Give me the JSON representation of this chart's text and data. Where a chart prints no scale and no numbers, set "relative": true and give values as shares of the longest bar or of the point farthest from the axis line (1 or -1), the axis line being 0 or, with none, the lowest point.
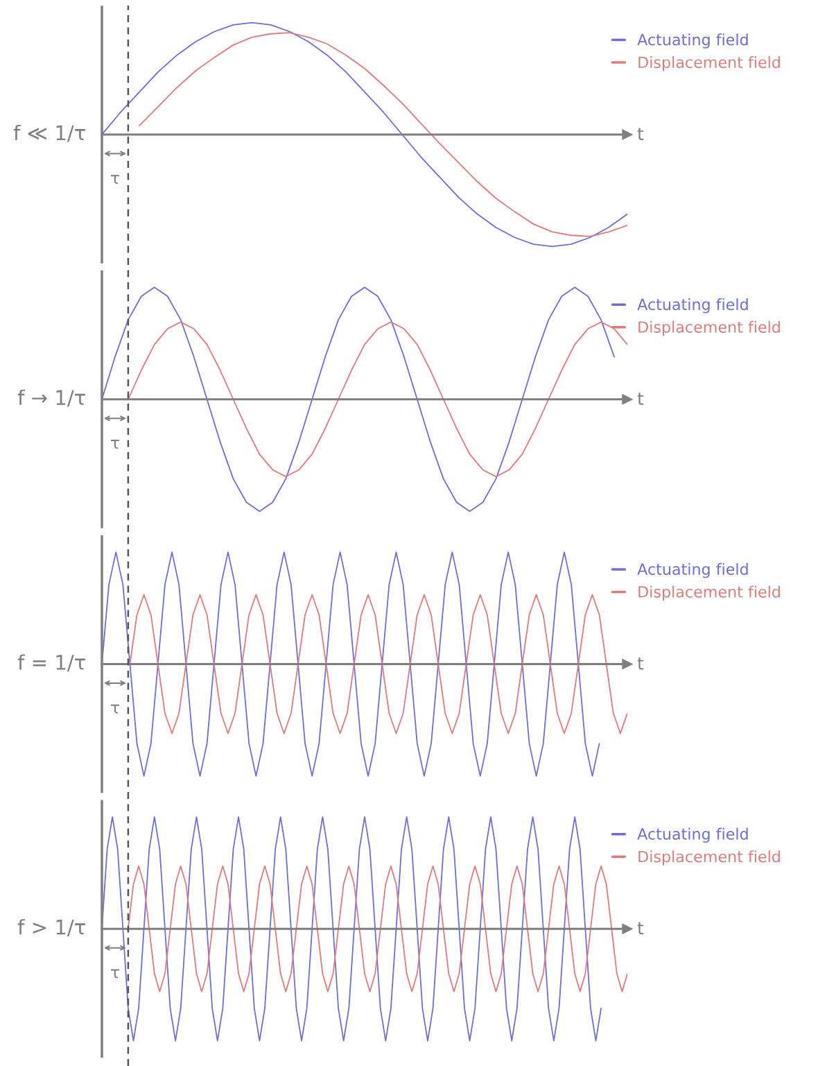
{
  "chart_data": [
    {
      "type": "line",
      "ylabel": "f ≪ 1/τ",
      "xlabel": "t",
      "relative": true,
      "legend": "top right",
      "annotations": [
        "τ"
      ],
      "categories": [
        null,
        null,
        null,
        null,
        null,
        null,
        null,
        null,
        null,
        null,
        null,
        null,
        null,
        null,
        null,
        null,
        null,
        null,
        null,
        null,
        null,
        null,
        null,
        null,
        null,
        null,
        null,
        null,
        null
      ],
      "series": [
        {
          "name": "Actuating field",
          "color": "#6d6ddc",
          "values": [
            0,
            0.2,
            0.38,
            0.56,
            0.71,
            0.83,
            0.92,
            0.98,
            1,
            0.98,
            0.92,
            0.83,
            0.71,
            0.56,
            0.38,
            0.2,
            0,
            -0.2,
            -0.38,
            -0.56,
            -0.71,
            -0.83,
            -0.92,
            -0.98,
            -1,
            -0.98,
            -0.92,
            -0.83,
            -0.71
          ]
        },
        {
          "name": "Displacement field",
          "color": "#e07b7b",
          "values": [
            null,
            null,
            0.08,
            0.25,
            0.42,
            0.57,
            0.69,
            0.8,
            0.87,
            0.9,
            0.91,
            0.87,
            0.81,
            0.71,
            0.59,
            0.44,
            0.28,
            0.1,
            -0.08,
            -0.25,
            -0.42,
            -0.57,
            -0.69,
            -0.8,
            -0.87,
            -0.9,
            -0.91,
            -0.87,
            -0.81
          ]
        }
      ]
    },
    {
      "type": "line",
      "ylabel": "f → 1/τ",
      "xlabel": "t",
      "relative": true,
      "legend": "top right",
      "annotations": [
        "τ"
      ],
      "categories": [
        null,
        null,
        null,
        null,
        null,
        null,
        null,
        null,
        null,
        null,
        null,
        null,
        null,
        null,
        null,
        null,
        null,
        null,
        null,
        null,
        null,
        null,
        null,
        null,
        null,
        null,
        null,
        null,
        null,
        null,
        null,
        null,
        null,
        null,
        null,
        null,
        null,
        null,
        null,
        null,
        null
      ],
      "series": [
        {
          "name": "Actuating field",
          "color": "#6d6ddc",
          "values": [
            0,
            0.38,
            0.71,
            0.92,
            1,
            0.92,
            0.71,
            0.38,
            0,
            -0.38,
            -0.71,
            -0.92,
            -1,
            -0.92,
            -0.71,
            -0.38,
            0,
            0.38,
            0.71,
            0.92,
            1,
            0.92,
            0.71,
            0.38,
            0,
            -0.38,
            -0.71,
            -0.92,
            -1,
            -0.92,
            -0.71,
            -0.38,
            0,
            0.38,
            0.71,
            0.92,
            1,
            0.92,
            0.71,
            0.38,
            null
          ]
        },
        {
          "name": "Displacement field",
          "color": "#e07b7b",
          "values": [
            null,
            null,
            0,
            0.26,
            0.49,
            0.63,
            0.69,
            0.63,
            0.49,
            0.26,
            0,
            -0.26,
            -0.49,
            -0.63,
            -0.69,
            -0.63,
            -0.49,
            -0.26,
            0,
            0.26,
            0.49,
            0.63,
            0.69,
            0.63,
            0.49,
            0.26,
            0,
            -0.26,
            -0.49,
            -0.63,
            -0.69,
            -0.63,
            -0.49,
            -0.26,
            0,
            0.26,
            0.49,
            0.63,
            0.69,
            0.63,
            0.49
          ]
        }
      ]
    },
    {
      "type": "line",
      "ylabel": "f = 1/τ",
      "xlabel": "t",
      "relative": true,
      "legend": "top right",
      "annotations": [
        "τ"
      ],
      "categories": [
        null,
        null,
        null,
        null,
        null,
        null,
        null,
        null,
        null,
        null,
        null,
        null,
        null,
        null,
        null,
        null,
        null,
        null,
        null,
        null,
        null,
        null,
        null,
        null,
        null,
        null,
        null,
        null,
        null,
        null,
        null,
        null,
        null,
        null,
        null,
        null,
        null,
        null,
        null,
        null,
        null,
        null,
        null,
        null,
        null,
        null,
        null,
        null,
        null,
        null,
        null,
        null,
        null,
        null,
        null,
        null,
        null,
        null,
        null,
        null,
        null,
        null,
        null,
        null,
        null,
        null,
        null,
        null,
        null,
        null,
        null,
        null,
        null,
        null,
        null,
        null
      ],
      "series": [
        {
          "name": "Actuating field",
          "color": "#6d6ddc",
          "values": [
            0,
            0.71,
            1,
            0.71,
            0,
            -0.71,
            -1,
            -0.71,
            0,
            0.71,
            1,
            0.71,
            0,
            -0.71,
            -1,
            -0.71,
            0,
            0.71,
            1,
            0.71,
            0,
            -0.71,
            -1,
            -0.71,
            0,
            0.71,
            1,
            0.71,
            0,
            -0.71,
            -1,
            -0.71,
            0,
            0.71,
            1,
            0.71,
            0,
            -0.71,
            -1,
            -0.71,
            0,
            0.71,
            1,
            0.71,
            0,
            -0.71,
            -1,
            -0.71,
            0,
            0.71,
            1,
            0.71,
            0,
            -0.71,
            -1,
            -0.71,
            0,
            0.71,
            1,
            0.71,
            0,
            -0.71,
            -1,
            -0.71,
            0,
            0.71,
            1,
            0.71,
            0,
            -0.71,
            -1,
            -0.71,
            null,
            null,
            null,
            null
          ]
        },
        {
          "name": "Displacement field",
          "color": "#e07b7b",
          "values": [
            null,
            null,
            null,
            null,
            0,
            0.44,
            0.62,
            0.44,
            0,
            -0.44,
            -0.62,
            -0.44,
            0,
            0.44,
            0.62,
            0.44,
            0,
            -0.44,
            -0.62,
            -0.44,
            0,
            0.44,
            0.62,
            0.44,
            0,
            -0.44,
            -0.62,
            -0.44,
            0,
            0.44,
            0.62,
            0.44,
            0,
            -0.44,
            -0.62,
            -0.44,
            0,
            0.44,
            0.62,
            0.44,
            0,
            -0.44,
            -0.62,
            -0.44,
            0,
            0.44,
            0.62,
            0.44,
            0,
            -0.44,
            -0.62,
            -0.44,
            0,
            0.44,
            0.62,
            0.44,
            0,
            -0.44,
            -0.62,
            -0.44,
            0,
            0.44,
            0.62,
            0.44,
            0,
            -0.44,
            -0.62,
            -0.44,
            0,
            0.44,
            0.62,
            0.44,
            0,
            -0.44,
            -0.62,
            -0.44
          ]
        }
      ]
    },
    {
      "type": "line",
      "ylabel": "f > 1/τ",
      "xlabel": "t",
      "relative": true,
      "legend": "top right",
      "annotations": [
        "τ"
      ],
      "categories": [
        null,
        null,
        null,
        null,
        null,
        null,
        null,
        null,
        null,
        null,
        null,
        null,
        null,
        null,
        null,
        null,
        null,
        null,
        null,
        null,
        null,
        null,
        null,
        null,
        null,
        null,
        null,
        null,
        null,
        null,
        null,
        null,
        null,
        null,
        null,
        null,
        null,
        null,
        null,
        null,
        null,
        null,
        null,
        null,
        null,
        null,
        null,
        null,
        null,
        null,
        null,
        null,
        null,
        null,
        null,
        null,
        null,
        null,
        null,
        null,
        null,
        null,
        null,
        null,
        null,
        null,
        null,
        null,
        null,
        null,
        null,
        null,
        null,
        null,
        null,
        null,
        null,
        null,
        null,
        null,
        null,
        null,
        null,
        null,
        null,
        null,
        null,
        null,
        null,
        null,
        null,
        null,
        null,
        null,
        null,
        null,
        null,
        null,
        null,
        null,
        null
      ],
      "series": [
        {
          "name": "Actuating field",
          "color": "#6d6ddc",
          "values": [
            0,
            0.71,
            1,
            0.71,
            0,
            -0.71,
            -1,
            -0.71,
            0,
            0.71,
            1,
            0.71,
            0,
            -0.71,
            -1,
            -0.71,
            0,
            0.71,
            1,
            0.71,
            0,
            -0.71,
            -1,
            -0.71,
            0,
            0.71,
            1,
            0.71,
            0,
            -0.71,
            -1,
            -0.71,
            0,
            0.71,
            1,
            0.71,
            0,
            -0.71,
            -1,
            -0.71,
            0,
            0.71,
            1,
            0.71,
            0,
            -0.71,
            -1,
            -0.71,
            0,
            0.71,
            1,
            0.71,
            0,
            -0.71,
            -1,
            -0.71,
            0,
            0.71,
            1,
            0.71,
            0,
            -0.71,
            -1,
            -0.71,
            0,
            0.71,
            1,
            0.71,
            0,
            -0.71,
            -1,
            -0.71,
            0,
            0.71,
            1,
            0.71,
            0,
            -0.71,
            -1,
            -0.71,
            0,
            0.71,
            1,
            0.71,
            0,
            -0.71,
            -1,
            -0.71,
            0,
            0.71,
            1,
            0.71,
            0,
            -0.71,
            -1,
            -0.71,
            null,
            null,
            null,
            null,
            null
          ]
        },
        {
          "name": "Displacement field",
          "color": "#e07b7b",
          "values": [
            null,
            null,
            null,
            null,
            null,
            0,
            0.4,
            0.56,
            0.4,
            0,
            -0.4,
            -0.56,
            -0.4,
            0,
            0.4,
            0.56,
            0.4,
            0,
            -0.4,
            -0.56,
            -0.4,
            0,
            0.4,
            0.56,
            0.4,
            0,
            -0.4,
            -0.56,
            -0.4,
            0,
            0.4,
            0.56,
            0.4,
            0,
            -0.4,
            -0.56,
            -0.4,
            0,
            0.4,
            0.56,
            0.4,
            0,
            -0.4,
            -0.56,
            -0.4,
            0,
            0.4,
            0.56,
            0.4,
            0,
            -0.4,
            -0.56,
            -0.4,
            0,
            0.4,
            0.56,
            0.4,
            0,
            -0.4,
            -0.56,
            -0.4,
            0,
            0.4,
            0.56,
            0.4,
            0,
            -0.4,
            -0.56,
            -0.4,
            0,
            0.4,
            0.56,
            0.4,
            0,
            -0.4,
            -0.56,
            -0.4,
            0,
            0.4,
            0.56,
            0.4,
            0,
            -0.4,
            -0.56,
            -0.4,
            0,
            0.4,
            0.56,
            0.4,
            0,
            -0.4,
            -0.56,
            -0.4,
            0,
            0.4,
            0.56,
            0.4,
            0,
            -0.4,
            -0.56,
            -0.4
          ]
        }
      ]
    }
  ]
}
